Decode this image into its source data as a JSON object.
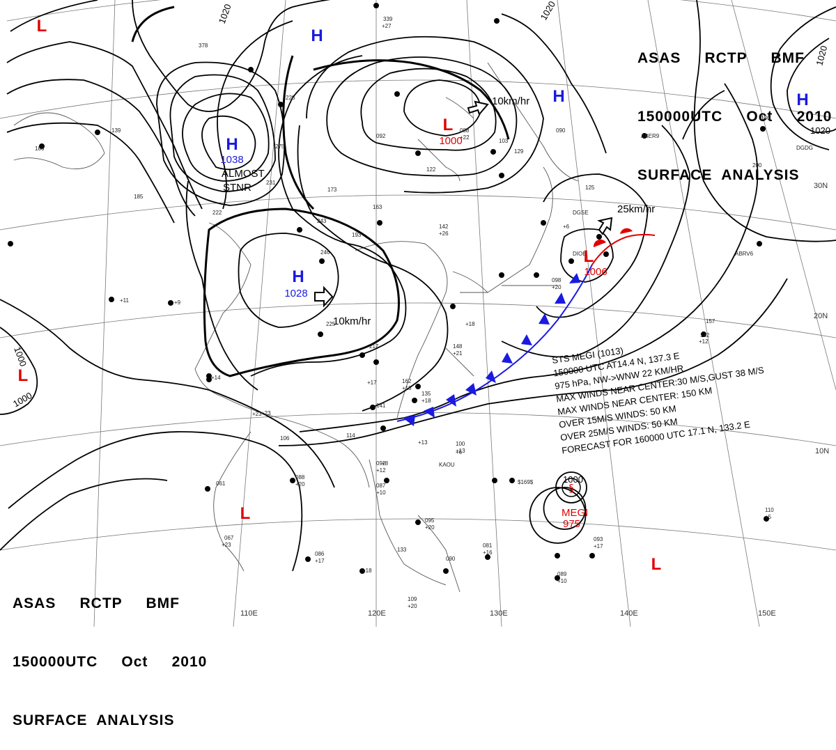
{
  "header": {
    "line1": "ASAS     RCTP     BMF",
    "line2": "150000UTC     Oct     2010",
    "line3": "SURFACE  ANALYSIS"
  },
  "grid_labels": {
    "lon": [
      "110E",
      "120E",
      "130E",
      "140E",
      "150E"
    ],
    "lat": [
      "30N",
      "20N",
      "10N"
    ]
  },
  "isobar_labels": [
    "1020",
    "1020",
    "1020",
    "1020",
    "1000",
    "1000"
  ],
  "pressure_centers": [
    {
      "type": "H",
      "value": "1038"
    },
    {
      "type": "H",
      "value": "1028"
    },
    {
      "type": "H",
      "value": ""
    },
    {
      "type": "H",
      "value": ""
    },
    {
      "type": "H",
      "value": ""
    },
    {
      "type": "L",
      "value": "1000"
    },
    {
      "type": "L",
      "value": "1006"
    },
    {
      "type": "L",
      "value": ""
    },
    {
      "type": "L",
      "value": ""
    },
    {
      "type": "L",
      "value": ""
    },
    {
      "type": "L",
      "value": ""
    }
  ],
  "motion_labels": [
    "10km/hr",
    "10km/hr",
    "25km/hr"
  ],
  "almost_stnr": [
    "ALMOST",
    "STNR"
  ],
  "typhoon": {
    "name": "MEGI",
    "pressure": "975",
    "isobar": "1000",
    "info_lines": [
      "STS  MEGI  (1013)",
      "150000 UTC  AT14.4 N, 137.3 E",
      "975 hPa, NW->WNW  22 KM/HR",
      "MAX WINDS NEAR CENTER:30 M/S,GUST 38 M/S",
      "MAX WINDS NEAR CENTER: 150 KM",
      "OVER 15M/S WINDS: 50 KM",
      "OVER 25M/S WINDS: 50 KM",
      "FORECAST FOR 160000 UTC  17.1 N, 133.2 E"
    ]
  },
  "station_labels": [
    "339",
    "+27",
    "378",
    "231",
    "222",
    "243",
    "246",
    "225",
    "217",
    "193",
    "163",
    "122",
    "092",
    "088",
    "+22",
    "103",
    "142",
    "+26",
    "129",
    "+18",
    "098",
    "+20",
    "090",
    "+6",
    "125",
    "200",
    "180",
    "142",
    "+12",
    "157",
    "148",
    "+21",
    "162",
    "+18",
    "135",
    "+18",
    "141",
    "+23",
    "106",
    "114",
    "100",
    "+13",
    "092",
    "+12",
    "087",
    "+10",
    "088",
    "+20",
    "061",
    "067",
    "+23",
    "086",
    "+17",
    "133",
    "+18",
    "095",
    "+20",
    "090",
    "081",
    "+16",
    "093",
    "+17",
    "089",
    "+10",
    "110",
    "+5",
    "109",
    "+20",
    "KAOU",
    "DGSE",
    "DIOE",
    "ABER9",
    "DGDG",
    "ABRV6",
    "$169$",
    "185",
    "139",
    "186",
    "275",
    "228",
    "173",
    "+14",
    "+9",
    "+11",
    "+23",
    "+17",
    "+13",
    "+6",
    "+8"
  ],
  "colors": {
    "high": "#1a1ae0",
    "low": "#e00000",
    "cold_front": "#1a1ae0",
    "warm_front": "#e00000"
  }
}
